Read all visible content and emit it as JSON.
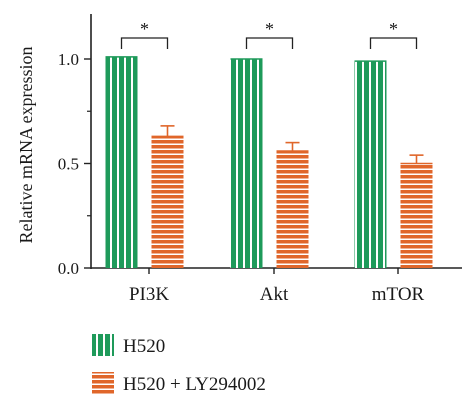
{
  "chart_data": {
    "type": "bar",
    "ylabel": "Relative mRNA expression",
    "xlabel": "",
    "title": "",
    "categories": [
      "PI3K",
      "Akt",
      "mTOR"
    ],
    "ylim": [
      0,
      1.0
    ],
    "yticks": [
      "0.0",
      "0.5",
      "1.0"
    ],
    "series": [
      {
        "name": "H520",
        "values": [
          1.01,
          1.0,
          0.99
        ],
        "errors": [
          0,
          0,
          0
        ],
        "color": "#1e9a5a",
        "pattern": "vertical-stripes"
      },
      {
        "name": "H520 + LY294002",
        "values": [
          0.63,
          0.56,
          0.5
        ],
        "errors": [
          0.05,
          0.04,
          0.04
        ],
        "color": "#e0662a",
        "pattern": "horizontal-stripes"
      }
    ],
    "annotations": [
      "*",
      "*",
      "*"
    ],
    "legend_position": "bottom-left"
  }
}
